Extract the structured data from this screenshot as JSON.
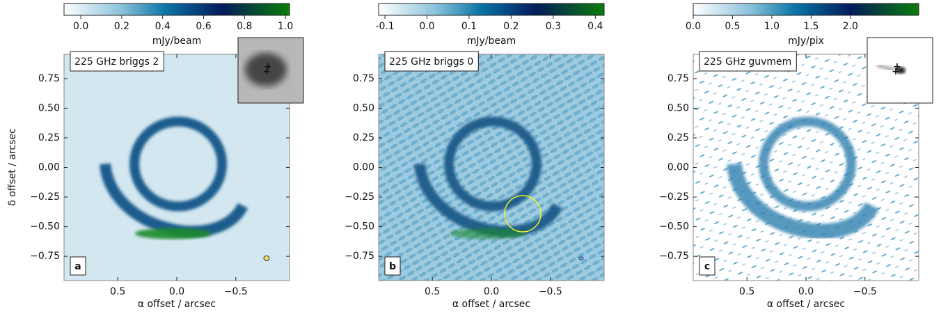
{
  "axes": {
    "xlabel": "α offset / arcsec",
    "ylabel": "δ  offset / arcsec",
    "xlim": [
      0.955,
      -0.955
    ],
    "ylim": [
      -0.955,
      0.955
    ],
    "xticks": [
      {
        "value": 0.5,
        "label": "0.5"
      },
      {
        "value": 0,
        "label": "0.0"
      },
      {
        "value": -0.5,
        "label": "−0.5"
      }
    ],
    "yticks": [
      {
        "value": 0.75,
        "label": "0.75"
      },
      {
        "value": 0.5,
        "label": "0.50"
      },
      {
        "value": 0.25,
        "label": "0.25"
      },
      {
        "value": 0,
        "label": "0.00"
      },
      {
        "value": -0.25,
        "label": "−0.25"
      },
      {
        "value": -0.5,
        "label": "−0.50"
      },
      {
        "value": -0.75,
        "label": "−0.75"
      }
    ]
  },
  "panels": [
    {
      "title": "225 GHz briggs 2",
      "letter": "a",
      "colorbar": {
        "label": "mJy/beam",
        "lim": [
          -0.082,
          1.02
        ],
        "ticks": [
          {
            "value": 0,
            "label": "0.0"
          },
          {
            "value": 0.2,
            "label": "0.2"
          },
          {
            "value": 0.4,
            "label": "0.4"
          },
          {
            "value": 0.6,
            "label": "0.6"
          },
          {
            "value": 0.8,
            "label": "0.8"
          },
          {
            "value": 1,
            "label": "1.0"
          }
        ]
      }
    },
    {
      "title": "225 GHz briggs 0",
      "letter": "b",
      "colorbar": {
        "label": "mJy/beam",
        "lim": [
          -0.115,
          0.421
        ],
        "ticks": [
          {
            "value": -0.1,
            "label": "-0.1"
          },
          {
            "value": 0,
            "label": "0.0"
          },
          {
            "value": 0.1,
            "label": "0.1"
          },
          {
            "value": 0.2,
            "label": "0.2"
          },
          {
            "value": 0.3,
            "label": "0.3"
          },
          {
            "value": 0.4,
            "label": "0.4"
          }
        ]
      }
    },
    {
      "title": "225 GHz guvmem",
      "letter": "c",
      "colorbar": {
        "label": "mJy/pix",
        "lim": [
          0,
          2.87
        ],
        "ticks": [
          {
            "value": 0,
            "label": "0.0"
          },
          {
            "value": 0.5,
            "label": "0.5"
          },
          {
            "value": 1,
            "label": "1.0"
          },
          {
            "value": 1.5,
            "label": "1.5"
          },
          {
            "value": 2,
            "label": "2.0"
          }
        ]
      }
    }
  ]
}
